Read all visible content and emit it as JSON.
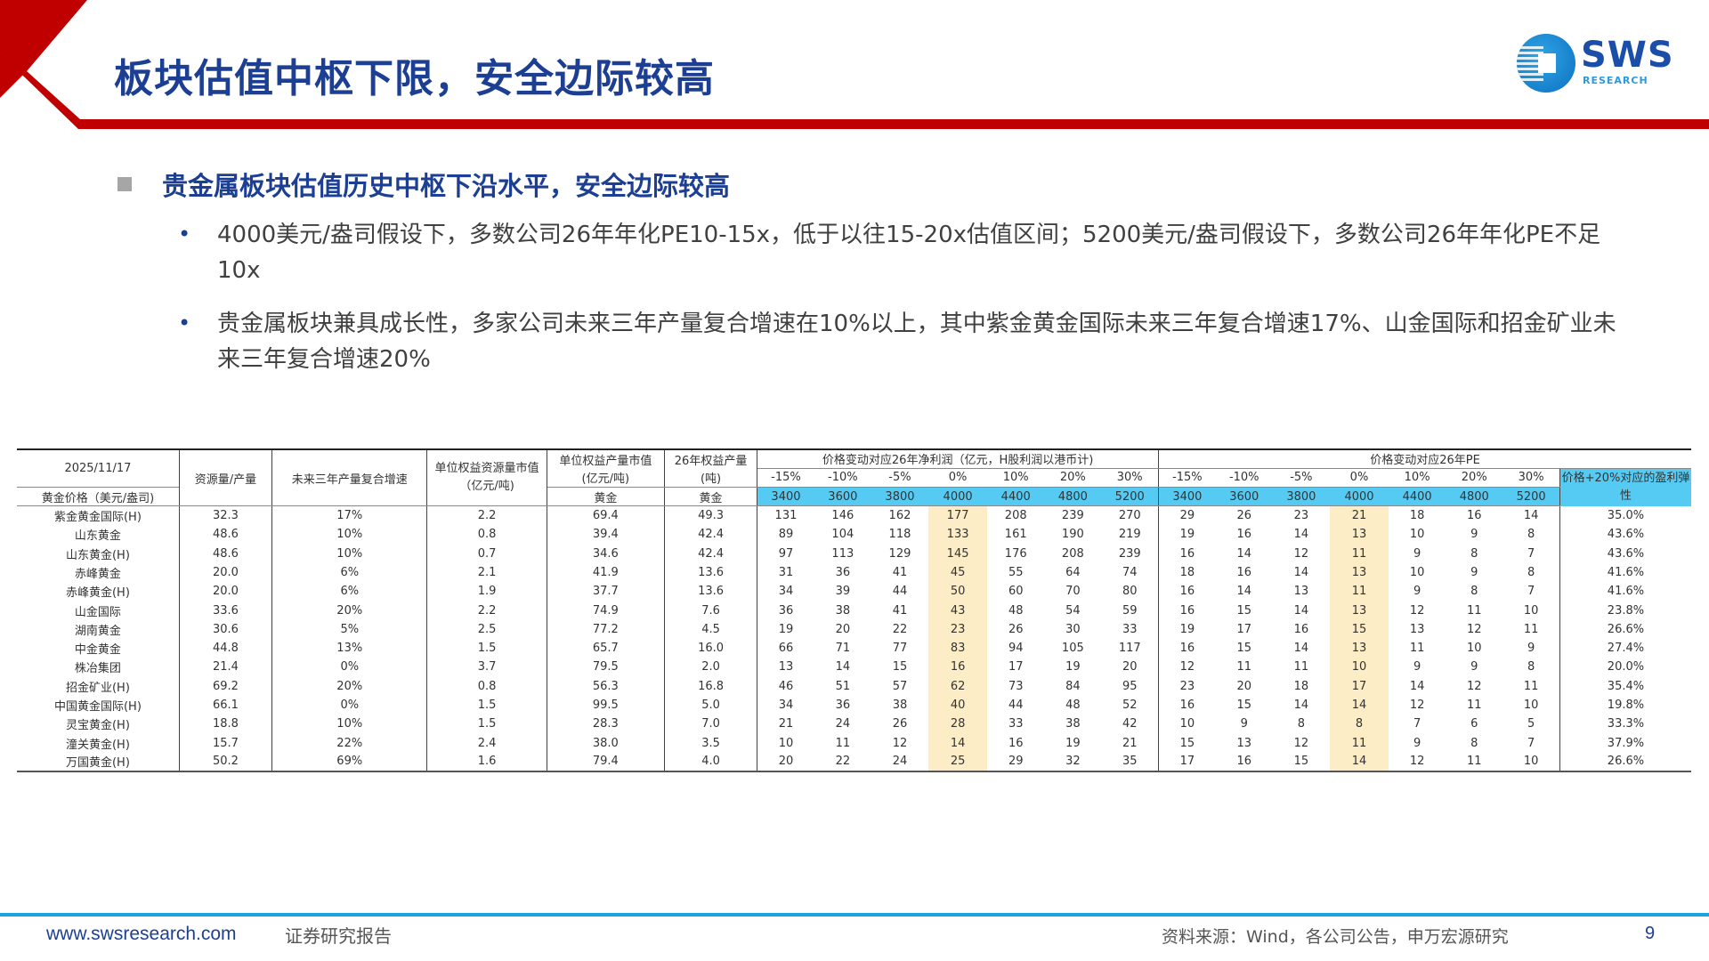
{
  "header": {
    "title": "板块估值中枢下限，安全边际较高",
    "logo": {
      "main": "SWS",
      "sub": "RESEARCH"
    },
    "accent_red": "#c00000",
    "title_blue": "#1c3f94"
  },
  "section": {
    "heading": "贵金属板块估值历史中枢下沿水平，安全边际较高",
    "bullets": [
      "4000美元/盎司假设下，多数公司26年年化PE10-15x，低于以往15-20x估值区间；5200美元/盎司假设下，多数公司26年年化PE不足10x",
      "贵金属板块兼具成长性，多家公司未来三年产量复合增速在10%以上，其中紫金黄金国际未来三年复合增速17%、山金国际和招金矿业未来三年复合增速20%"
    ]
  },
  "table": {
    "date": "2025/11/17",
    "gold_price_label": "黄金价格（美元/盎司)",
    "col_headers": {
      "reserve_ratio": "资源量/产量",
      "cagr": "未来三年产量复合增速",
      "unit_resource_mv": "单位权益资源量市值（亿元/吨)",
      "unit_output_mv": "单位权益产量市值",
      "unit_output_mv_unit": "(亿元/吨)",
      "output26": "26年权益产量",
      "output26_unit": "(吨)",
      "gold": "黄金",
      "profit_group": "价格变动对应26年净利润（亿元，H股利润以港币计)",
      "pe_group": "价格变动对应26年PE",
      "elasticity": "价格+20%对应的盈利弹性"
    },
    "changes": [
      "-15%",
      "-10%",
      "-5%",
      "0%",
      "10%",
      "20%",
      "30%"
    ],
    "prices": [
      "3400",
      "3600",
      "3800",
      "4000",
      "4400",
      "4800",
      "5200"
    ],
    "highlight_color": "#fdedc6",
    "price_row_color": "#55cbf3",
    "rows": [
      {
        "name": "紫金黄金国际(H)",
        "reserve": "32.3",
        "cagr": "17%",
        "res_mv": "2.2",
        "out_mv": "69.4",
        "out26": "49.3",
        "profit": [
          "131",
          "146",
          "162",
          "177",
          "208",
          "239",
          "270"
        ],
        "pe": [
          "29",
          "26",
          "23",
          "21",
          "18",
          "16",
          "14"
        ],
        "elastic": "35.0%"
      },
      {
        "name": "山东黄金",
        "reserve": "48.6",
        "cagr": "10%",
        "res_mv": "0.8",
        "out_mv": "39.4",
        "out26": "42.4",
        "profit": [
          "89",
          "104",
          "118",
          "133",
          "161",
          "190",
          "219"
        ],
        "pe": [
          "19",
          "16",
          "14",
          "13",
          "10",
          "9",
          "8"
        ],
        "elastic": "43.6%"
      },
      {
        "name": "山东黄金(H)",
        "reserve": "48.6",
        "cagr": "10%",
        "res_mv": "0.7",
        "out_mv": "34.6",
        "out26": "42.4",
        "profit": [
          "97",
          "113",
          "129",
          "145",
          "176",
          "208",
          "239"
        ],
        "pe": [
          "16",
          "14",
          "12",
          "11",
          "9",
          "8",
          "7"
        ],
        "elastic": "43.6%"
      },
      {
        "name": "赤峰黄金",
        "reserve": "20.0",
        "cagr": "6%",
        "res_mv": "2.1",
        "out_mv": "41.9",
        "out26": "13.6",
        "profit": [
          "31",
          "36",
          "41",
          "45",
          "55",
          "64",
          "74"
        ],
        "pe": [
          "18",
          "16",
          "14",
          "13",
          "10",
          "9",
          "8"
        ],
        "elastic": "41.6%"
      },
      {
        "name": "赤峰黄金(H)",
        "reserve": "20.0",
        "cagr": "6%",
        "res_mv": "1.9",
        "out_mv": "37.7",
        "out26": "13.6",
        "profit": [
          "34",
          "39",
          "44",
          "50",
          "60",
          "70",
          "80"
        ],
        "pe": [
          "16",
          "14",
          "13",
          "11",
          "9",
          "8",
          "7"
        ],
        "elastic": "41.6%"
      },
      {
        "name": "山金国际",
        "reserve": "33.6",
        "cagr": "20%",
        "res_mv": "2.2",
        "out_mv": "74.9",
        "out26": "7.6",
        "profit": [
          "36",
          "38",
          "41",
          "43",
          "48",
          "54",
          "59"
        ],
        "pe": [
          "16",
          "15",
          "14",
          "13",
          "12",
          "11",
          "10"
        ],
        "elastic": "23.8%"
      },
      {
        "name": "湖南黄金",
        "reserve": "30.6",
        "cagr": "5%",
        "res_mv": "2.5",
        "out_mv": "77.2",
        "out26": "4.5",
        "profit": [
          "19",
          "20",
          "22",
          "23",
          "26",
          "30",
          "33"
        ],
        "pe": [
          "19",
          "17",
          "16",
          "15",
          "13",
          "12",
          "11"
        ],
        "elastic": "26.6%"
      },
      {
        "name": "中金黄金",
        "reserve": "44.8",
        "cagr": "13%",
        "res_mv": "1.5",
        "out_mv": "65.7",
        "out26": "16.0",
        "profit": [
          "66",
          "71",
          "77",
          "83",
          "94",
          "105",
          "117"
        ],
        "pe": [
          "16",
          "15",
          "14",
          "13",
          "11",
          "10",
          "9"
        ],
        "elastic": "27.4%"
      },
      {
        "name": "株冶集团",
        "reserve": "21.4",
        "cagr": "0%",
        "res_mv": "3.7",
        "out_mv": "79.5",
        "out26": "2.0",
        "profit": [
          "13",
          "14",
          "15",
          "16",
          "17",
          "19",
          "20"
        ],
        "pe": [
          "12",
          "11",
          "11",
          "10",
          "9",
          "9",
          "8"
        ],
        "elastic": "20.0%"
      },
      {
        "name": "招金矿业(H)",
        "reserve": "69.2",
        "cagr": "20%",
        "res_mv": "0.8",
        "out_mv": "56.3",
        "out26": "16.8",
        "profit": [
          "46",
          "51",
          "57",
          "62",
          "73",
          "84",
          "95"
        ],
        "pe": [
          "23",
          "20",
          "18",
          "17",
          "14",
          "12",
          "11"
        ],
        "elastic": "35.4%"
      },
      {
        "name": "中国黄金国际(H)",
        "reserve": "66.1",
        "cagr": "0%",
        "res_mv": "1.5",
        "out_mv": "99.5",
        "out26": "5.0",
        "profit": [
          "34",
          "36",
          "38",
          "40",
          "44",
          "48",
          "52"
        ],
        "pe": [
          "16",
          "15",
          "14",
          "14",
          "12",
          "11",
          "10"
        ],
        "elastic": "19.8%"
      },
      {
        "name": "灵宝黄金(H)",
        "reserve": "18.8",
        "cagr": "10%",
        "res_mv": "1.5",
        "out_mv": "28.3",
        "out26": "7.0",
        "profit": [
          "21",
          "24",
          "26",
          "28",
          "33",
          "38",
          "42"
        ],
        "pe": [
          "10",
          "9",
          "8",
          "8",
          "7",
          "6",
          "5"
        ],
        "elastic": "33.3%"
      },
      {
        "name": "潼关黄金(H)",
        "reserve": "15.7",
        "cagr": "22%",
        "res_mv": "2.4",
        "out_mv": "38.0",
        "out26": "3.5",
        "profit": [
          "10",
          "11",
          "12",
          "14",
          "16",
          "19",
          "21"
        ],
        "pe": [
          "15",
          "13",
          "12",
          "11",
          "9",
          "8",
          "7"
        ],
        "elastic": "37.9%"
      },
      {
        "name": "万国黄金(H)",
        "reserve": "50.2",
        "cagr": "69%",
        "res_mv": "1.6",
        "out_mv": "79.4",
        "out26": "4.0",
        "profit": [
          "20",
          "22",
          "24",
          "25",
          "29",
          "32",
          "35"
        ],
        "pe": [
          "17",
          "16",
          "15",
          "14",
          "12",
          "11",
          "10"
        ],
        "elastic": "26.6%"
      }
    ]
  },
  "footer": {
    "url": "www.swsresearch.com",
    "label": "证券研究报告",
    "source": "资料来源：Wind，各公司公告，申万宏源研究",
    "page": "9"
  }
}
